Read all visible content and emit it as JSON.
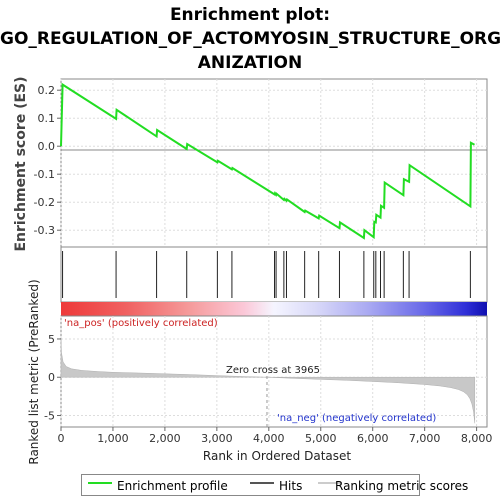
{
  "chart_data": [
    {
      "type": "line",
      "title_lines": [
        "Enrichment plot:",
        "GO_REGULATION_OF_ACTOMYOSIN_STRUCTURE_ORG",
        "ANIZATION"
      ],
      "ylabel": "Enrichment score (ES)",
      "ylim": [
        -0.36,
        0.24
      ],
      "yticks": [
        "0.2",
        "0.1",
        "0.0",
        "-0.1",
        "-0.2",
        "-0.3"
      ],
      "ytick_values": [
        0.2,
        0.1,
        0.0,
        -0.1,
        -0.2,
        -0.3
      ],
      "xlim": [
        0,
        8200
      ],
      "grid": true,
      "series": [
        {
          "name": "Enrichment profile",
          "color": "#22dd22",
          "x": [
            0,
            30,
            1060,
            1070,
            1840,
            1850,
            2420,
            2430,
            3010,
            3020,
            3290,
            3300,
            4110,
            4120,
            4140,
            4150,
            4290,
            4300,
            4340,
            4350,
            4690,
            4700,
            4960,
            4970,
            5360,
            5370,
            5830,
            5840,
            6020,
            6030,
            6060,
            6070,
            6150,
            6160,
            6220,
            6230,
            6590,
            6600,
            6700,
            6710,
            7880,
            7890,
            7960
          ],
          "y": [
            0.0,
            0.22,
            0.098,
            0.13,
            0.035,
            0.058,
            -0.01,
            0.008,
            -0.058,
            -0.052,
            -0.083,
            -0.078,
            -0.172,
            -0.168,
            -0.174,
            -0.17,
            -0.192,
            -0.188,
            -0.195,
            -0.19,
            -0.235,
            -0.23,
            -0.258,
            -0.248,
            -0.293,
            -0.272,
            -0.328,
            -0.3,
            -0.325,
            -0.27,
            -0.272,
            -0.245,
            -0.255,
            -0.213,
            -0.22,
            -0.13,
            -0.175,
            -0.118,
            -0.127,
            -0.068,
            -0.215,
            0.012,
            0.005
          ]
        }
      ]
    },
    {
      "type": "hits",
      "hit_positions": [
        30,
        1060,
        1840,
        2420,
        3010,
        3290,
        4110,
        4140,
        4290,
        4340,
        4690,
        4960,
        5360,
        5830,
        6020,
        6060,
        6150,
        6220,
        6590,
        6700,
        7880
      ]
    },
    {
      "type": "area",
      "ylabel": "Ranked list metric (PreRanked)",
      "xlabel": "Rank in Ordered Dataset",
      "ylim": [
        -6.5,
        8
      ],
      "yticks": [
        "5",
        "0",
        "-5"
      ],
      "ytick_values": [
        5,
        0,
        -5
      ],
      "xticks": [
        "0",
        "1,000",
        "2,000",
        "3,000",
        "4,000",
        "5,000",
        "6,000",
        "7,000",
        "8,000"
      ],
      "xtick_values": [
        0,
        1000,
        2000,
        3000,
        4000,
        5000,
        6000,
        7000,
        8000
      ],
      "n": 7965,
      "zero_cross": 3965,
      "zero_cross_label": "Zero cross at 3965",
      "pos_label": "'na_pos' (positively correlated)",
      "neg_label": "'na_neg' (negatively correlated)",
      "profile_x": [
        0,
        10,
        40,
        100,
        200,
        400,
        700,
        1000,
        1500,
        2000,
        2500,
        3000,
        3500,
        3965,
        4500,
        5000,
        5500,
        6000,
        6500,
        7000,
        7300,
        7500,
        7650,
        7750,
        7820,
        7870,
        7910,
        7940,
        7965
      ],
      "profile_y": [
        5.0,
        3.2,
        2.0,
        1.4,
        1.1,
        0.9,
        0.75,
        0.65,
        0.55,
        0.45,
        0.35,
        0.22,
        0.1,
        0.0,
        -0.15,
        -0.28,
        -0.4,
        -0.55,
        -0.72,
        -0.95,
        -1.15,
        -1.35,
        -1.6,
        -1.9,
        -2.3,
        -2.8,
        -3.5,
        -4.5,
        -6.0
      ]
    }
  ],
  "legend": {
    "items": [
      {
        "label": "Enrichment profile",
        "color": "#22dd22"
      },
      {
        "label": "Hits",
        "color": "#555555"
      },
      {
        "label": "Ranking metric scores",
        "color": "#cccccc"
      }
    ]
  }
}
